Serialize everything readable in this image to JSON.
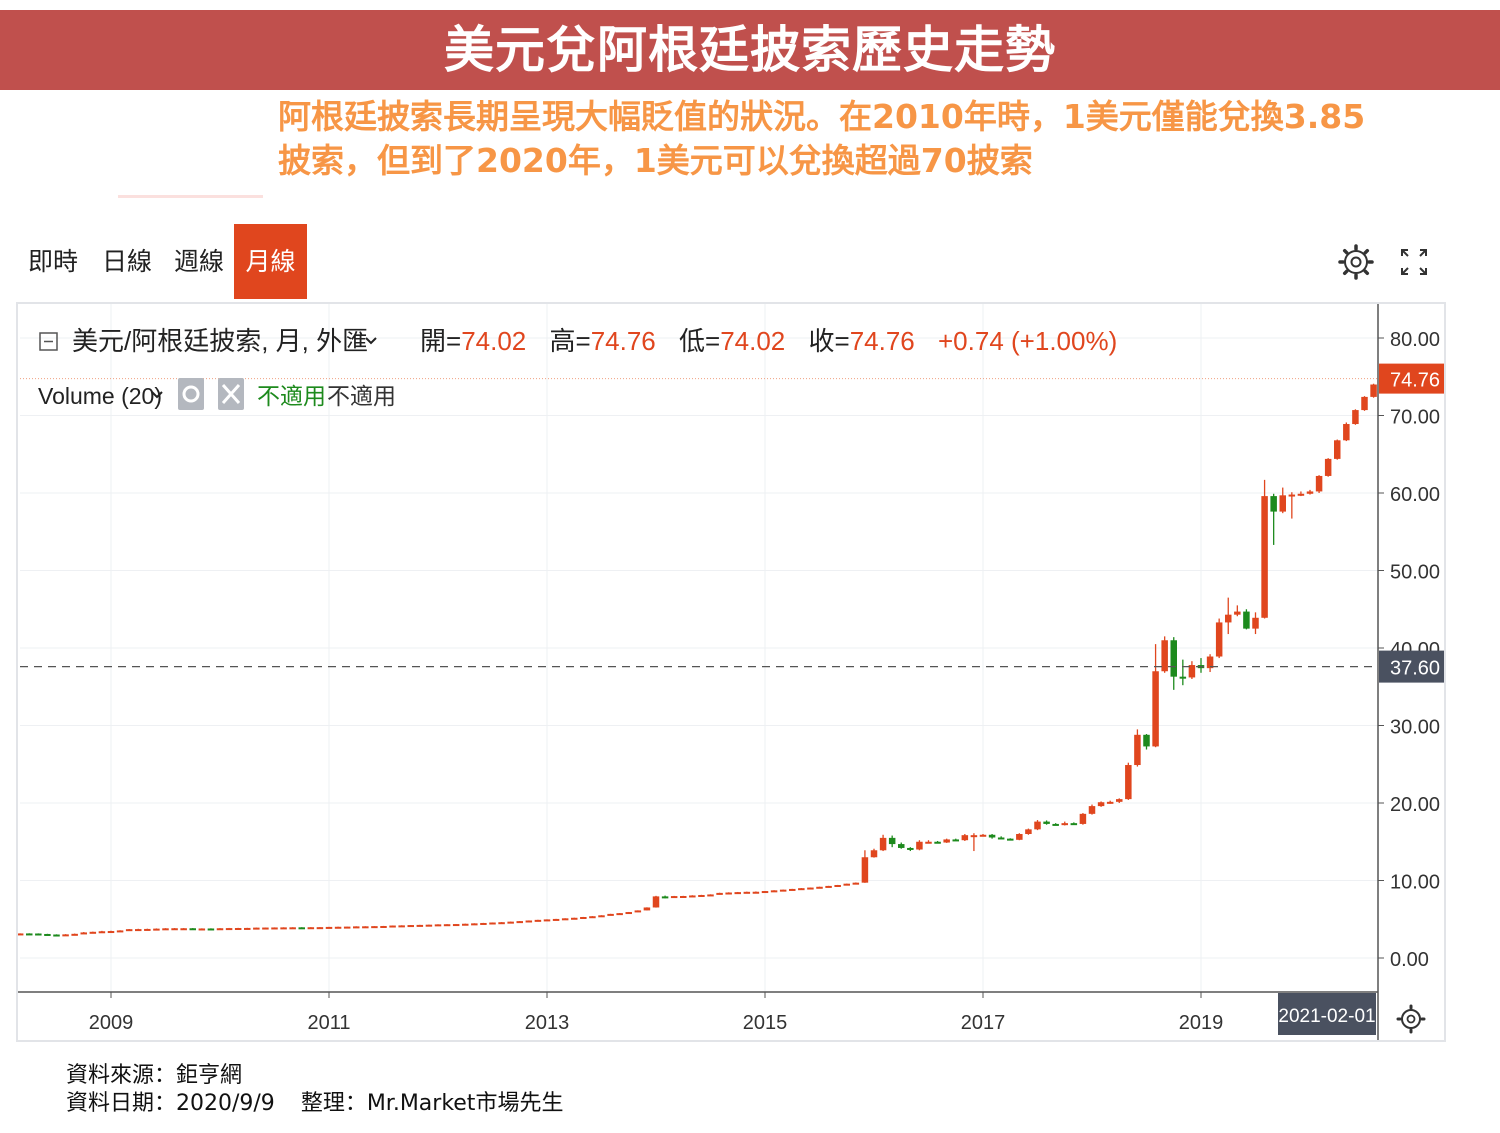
{
  "title": "美元兌阿根廷披索歷史走勢",
  "subtitle": "阿根廷披索長期呈現大幅貶值的狀況。在2010年時，1美元僅能兌換3.85披索，但到了2020年，1美元可以兌換超過70披索",
  "tabs": [
    {
      "label": "即時",
      "active": false
    },
    {
      "label": "日線",
      "active": false
    },
    {
      "label": "週線",
      "active": false
    },
    {
      "label": "月線",
      "active": true
    }
  ],
  "toolbar_icons": [
    "gear-icon",
    "fullscreen-icon"
  ],
  "legend": {
    "symbol": "美元/阿根廷披索, 月, 外匯",
    "open_label": "開=",
    "open": "74.02",
    "high_label": "高=",
    "high": "74.76",
    "low_label": "低=",
    "low": "74.02",
    "close_label": "收=",
    "close": "74.76",
    "change": "+0.74 (+1.00%)"
  },
  "volume": {
    "label": "Volume (20)",
    "na_1": "不適用",
    "na_2": "不適用"
  },
  "price_tags": {
    "last": "74.76",
    "crosshair": "37.60"
  },
  "date_tag": "2021-02-01",
  "colors": {
    "up": "#e0461e",
    "down": "#1d8a1d",
    "title_bg": "#c0504d",
    "subtitle": "#f79646",
    "tab_active": "#e0461e",
    "crosshair_tag": "#4a5160"
  },
  "chart_data": {
    "type": "candlestick",
    "xlabel": "",
    "ylabel": "",
    "x_ticks": [
      "2009",
      "2011",
      "2013",
      "2015",
      "2017",
      "2019"
    ],
    "y_ticks": [
      "0.00",
      "10.00",
      "20.00",
      "30.00",
      "40.00",
      "50.00",
      "60.00",
      "70.00",
      "80.00"
    ],
    "ylim": [
      0,
      80
    ],
    "x_start": "2008-01",
    "x_end": "2020-09",
    "last_price": 74.76,
    "crosshair_price": 37.6,
    "candles": [
      {
        "d": "2008-01",
        "o": 3.15,
        "h": 3.18,
        "l": 3.12,
        "c": 3.14
      },
      {
        "d": "2008-02",
        "o": 3.14,
        "h": 3.17,
        "l": 3.12,
        "c": 3.16
      },
      {
        "d": "2008-03",
        "o": 3.16,
        "h": 3.18,
        "l": 3.14,
        "c": 3.17
      },
      {
        "d": "2008-04",
        "o": 3.17,
        "h": 3.19,
        "l": 3.14,
        "c": 3.16
      },
      {
        "d": "2008-05",
        "o": 3.16,
        "h": 3.18,
        "l": 3.05,
        "c": 3.1
      },
      {
        "d": "2008-06",
        "o": 3.1,
        "h": 3.12,
        "l": 3.01,
        "c": 3.03
      },
      {
        "d": "2008-07",
        "o": 3.03,
        "h": 3.06,
        "l": 3.0,
        "c": 3.02
      },
      {
        "d": "2008-08",
        "o": 3.02,
        "h": 3.08,
        "l": 3.0,
        "c": 3.05
      },
      {
        "d": "2008-09",
        "o": 3.05,
        "h": 3.15,
        "l": 3.03,
        "c": 3.12
      },
      {
        "d": "2008-10",
        "o": 3.12,
        "h": 3.35,
        "l": 3.1,
        "c": 3.3
      },
      {
        "d": "2008-11",
        "o": 3.3,
        "h": 3.4,
        "l": 3.28,
        "c": 3.38
      },
      {
        "d": "2008-12",
        "o": 3.38,
        "h": 3.5,
        "l": 3.36,
        "c": 3.45
      },
      {
        "d": "2009-01",
        "o": 3.45,
        "h": 3.52,
        "l": 3.43,
        "c": 3.48
      },
      {
        "d": "2009-02",
        "o": 3.48,
        "h": 3.58,
        "l": 3.46,
        "c": 3.56
      },
      {
        "d": "2009-03",
        "o": 3.56,
        "h": 3.74,
        "l": 3.54,
        "c": 3.72
      },
      {
        "d": "2009-04",
        "o": 3.72,
        "h": 3.77,
        "l": 3.68,
        "c": 3.73
      },
      {
        "d": "2009-05",
        "o": 3.73,
        "h": 3.78,
        "l": 3.7,
        "c": 3.75
      },
      {
        "d": "2009-06",
        "o": 3.75,
        "h": 3.82,
        "l": 3.73,
        "c": 3.79
      },
      {
        "d": "2009-07",
        "o": 3.79,
        "h": 3.85,
        "l": 3.78,
        "c": 3.83
      },
      {
        "d": "2009-08",
        "o": 3.83,
        "h": 3.86,
        "l": 3.8,
        "c": 3.84
      },
      {
        "d": "2009-09",
        "o": 3.84,
        "h": 3.86,
        "l": 3.81,
        "c": 3.84
      },
      {
        "d": "2009-10",
        "o": 3.84,
        "h": 3.86,
        "l": 3.78,
        "c": 3.8
      },
      {
        "d": "2009-11",
        "o": 3.8,
        "h": 3.83,
        "l": 3.78,
        "c": 3.81
      },
      {
        "d": "2009-12",
        "o": 3.81,
        "h": 3.83,
        "l": 3.79,
        "c": 3.8
      },
      {
        "d": "2010-01",
        "o": 3.8,
        "h": 3.85,
        "l": 3.79,
        "c": 3.84
      },
      {
        "d": "2010-02",
        "o": 3.84,
        "h": 3.88,
        "l": 3.83,
        "c": 3.86
      },
      {
        "d": "2010-03",
        "o": 3.86,
        "h": 3.89,
        "l": 3.85,
        "c": 3.87
      },
      {
        "d": "2010-04",
        "o": 3.87,
        "h": 3.89,
        "l": 3.86,
        "c": 3.88
      },
      {
        "d": "2010-05",
        "o": 3.88,
        "h": 3.93,
        "l": 3.87,
        "c": 3.92
      },
      {
        "d": "2010-06",
        "o": 3.92,
        "h": 3.94,
        "l": 3.91,
        "c": 3.93
      },
      {
        "d": "2010-07",
        "o": 3.93,
        "h": 3.95,
        "l": 3.92,
        "c": 3.94
      },
      {
        "d": "2010-08",
        "o": 3.94,
        "h": 3.96,
        "l": 3.93,
        "c": 3.95
      },
      {
        "d": "2010-09",
        "o": 3.95,
        "h": 3.97,
        "l": 3.94,
        "c": 3.96
      },
      {
        "d": "2010-10",
        "o": 3.96,
        "h": 3.97,
        "l": 3.93,
        "c": 3.95
      },
      {
        "d": "2010-11",
        "o": 3.95,
        "h": 3.98,
        "l": 3.94,
        "c": 3.97
      },
      {
        "d": "2010-12",
        "o": 3.97,
        "h": 3.99,
        "l": 3.95,
        "c": 3.98
      },
      {
        "d": "2011-01",
        "o": 3.98,
        "h": 4.02,
        "l": 3.97,
        "c": 4.01
      },
      {
        "d": "2011-02",
        "o": 4.01,
        "h": 4.04,
        "l": 4.0,
        "c": 4.03
      },
      {
        "d": "2011-03",
        "o": 4.03,
        "h": 4.06,
        "l": 4.02,
        "c": 4.05
      },
      {
        "d": "2011-04",
        "o": 4.05,
        "h": 4.09,
        "l": 4.04,
        "c": 4.08
      },
      {
        "d": "2011-05",
        "o": 4.08,
        "h": 4.1,
        "l": 4.07,
        "c": 4.09
      },
      {
        "d": "2011-06",
        "o": 4.09,
        "h": 4.12,
        "l": 4.08,
        "c": 4.11
      },
      {
        "d": "2011-07",
        "o": 4.11,
        "h": 4.14,
        "l": 4.1,
        "c": 4.13
      },
      {
        "d": "2011-08",
        "o": 4.13,
        "h": 4.2,
        "l": 4.12,
        "c": 4.19
      },
      {
        "d": "2011-09",
        "o": 4.19,
        "h": 4.22,
        "l": 4.18,
        "c": 4.21
      },
      {
        "d": "2011-10",
        "o": 4.21,
        "h": 4.26,
        "l": 4.2,
        "c": 4.25
      },
      {
        "d": "2011-11",
        "o": 4.25,
        "h": 4.28,
        "l": 4.24,
        "c": 4.27
      },
      {
        "d": "2011-12",
        "o": 4.27,
        "h": 4.31,
        "l": 4.26,
        "c": 4.3
      },
      {
        "d": "2012-01",
        "o": 4.3,
        "h": 4.35,
        "l": 4.29,
        "c": 4.34
      },
      {
        "d": "2012-02",
        "o": 4.34,
        "h": 4.37,
        "l": 4.33,
        "c": 4.36
      },
      {
        "d": "2012-03",
        "o": 4.36,
        "h": 4.39,
        "l": 4.35,
        "c": 4.38
      },
      {
        "d": "2012-04",
        "o": 4.38,
        "h": 4.43,
        "l": 4.37,
        "c": 4.42
      },
      {
        "d": "2012-05",
        "o": 4.42,
        "h": 4.48,
        "l": 4.41,
        "c": 4.47
      },
      {
        "d": "2012-06",
        "o": 4.47,
        "h": 4.53,
        "l": 4.46,
        "c": 4.52
      },
      {
        "d": "2012-07",
        "o": 4.52,
        "h": 4.59,
        "l": 4.51,
        "c": 4.58
      },
      {
        "d": "2012-08",
        "o": 4.58,
        "h": 4.63,
        "l": 4.57,
        "c": 4.62
      },
      {
        "d": "2012-09",
        "o": 4.62,
        "h": 4.7,
        "l": 4.61,
        "c": 4.69
      },
      {
        "d": "2012-10",
        "o": 4.69,
        "h": 4.77,
        "l": 4.68,
        "c": 4.76
      },
      {
        "d": "2012-11",
        "o": 4.76,
        "h": 4.85,
        "l": 4.75,
        "c": 4.84
      },
      {
        "d": "2012-12",
        "o": 4.84,
        "h": 4.93,
        "l": 4.83,
        "c": 4.92
      },
      {
        "d": "2013-01",
        "o": 4.92,
        "h": 4.99,
        "l": 4.91,
        "c": 4.98
      },
      {
        "d": "2013-02",
        "o": 4.98,
        "h": 5.05,
        "l": 4.97,
        "c": 5.04
      },
      {
        "d": "2013-03",
        "o": 5.04,
        "h": 5.13,
        "l": 5.03,
        "c": 5.12
      },
      {
        "d": "2013-04",
        "o": 5.12,
        "h": 5.2,
        "l": 5.11,
        "c": 5.19
      },
      {
        "d": "2013-05",
        "o": 5.19,
        "h": 5.3,
        "l": 5.18,
        "c": 5.29
      },
      {
        "d": "2013-06",
        "o": 5.29,
        "h": 5.4,
        "l": 5.28,
        "c": 5.39
      },
      {
        "d": "2013-07",
        "o": 5.39,
        "h": 5.52,
        "l": 5.38,
        "c": 5.51
      },
      {
        "d": "2013-08",
        "o": 5.51,
        "h": 5.7,
        "l": 5.5,
        "c": 5.69
      },
      {
        "d": "2013-09",
        "o": 5.69,
        "h": 5.8,
        "l": 5.68,
        "c": 5.79
      },
      {
        "d": "2013-10",
        "o": 5.79,
        "h": 5.94,
        "l": 5.78,
        "c": 5.93
      },
      {
        "d": "2013-11",
        "o": 5.93,
        "h": 6.15,
        "l": 5.92,
        "c": 6.14
      },
      {
        "d": "2013-12",
        "o": 6.14,
        "h": 6.54,
        "l": 6.13,
        "c": 6.52
      },
      {
        "d": "2014-01",
        "o": 6.52,
        "h": 8.02,
        "l": 6.5,
        "c": 7.95
      },
      {
        "d": "2014-02",
        "o": 7.95,
        "h": 8.05,
        "l": 7.7,
        "c": 7.88
      },
      {
        "d": "2014-03",
        "o": 7.88,
        "h": 8.01,
        "l": 7.8,
        "c": 7.99
      },
      {
        "d": "2014-04",
        "o": 7.99,
        "h": 8.02,
        "l": 7.85,
        "c": 8.0
      },
      {
        "d": "2014-05",
        "o": 8.0,
        "h": 8.1,
        "l": 7.9,
        "c": 8.07
      },
      {
        "d": "2014-06",
        "o": 8.07,
        "h": 8.15,
        "l": 8.02,
        "c": 8.13
      },
      {
        "d": "2014-07",
        "o": 8.13,
        "h": 8.22,
        "l": 8.1,
        "c": 8.2
      },
      {
        "d": "2014-08",
        "o": 8.2,
        "h": 8.42,
        "l": 8.18,
        "c": 8.4
      },
      {
        "d": "2014-09",
        "o": 8.4,
        "h": 8.48,
        "l": 8.38,
        "c": 8.45
      },
      {
        "d": "2014-10",
        "o": 8.45,
        "h": 8.52,
        "l": 8.43,
        "c": 8.5
      },
      {
        "d": "2014-11",
        "o": 8.5,
        "h": 8.56,
        "l": 8.48,
        "c": 8.54
      },
      {
        "d": "2014-12",
        "o": 8.54,
        "h": 8.59,
        "l": 8.52,
        "c": 8.55
      },
      {
        "d": "2015-01",
        "o": 8.55,
        "h": 8.65,
        "l": 8.54,
        "c": 8.64
      },
      {
        "d": "2015-02",
        "o": 8.64,
        "h": 8.75,
        "l": 8.63,
        "c": 8.73
      },
      {
        "d": "2015-03",
        "o": 8.73,
        "h": 8.83,
        "l": 8.72,
        "c": 8.82
      },
      {
        "d": "2015-04",
        "o": 8.82,
        "h": 8.92,
        "l": 8.81,
        "c": 8.91
      },
      {
        "d": "2015-05",
        "o": 8.91,
        "h": 9.02,
        "l": 8.9,
        "c": 9.01
      },
      {
        "d": "2015-06",
        "o": 9.01,
        "h": 9.1,
        "l": 9.0,
        "c": 9.09
      },
      {
        "d": "2015-07",
        "o": 9.09,
        "h": 9.2,
        "l": 9.08,
        "c": 9.19
      },
      {
        "d": "2015-08",
        "o": 9.19,
        "h": 9.31,
        "l": 9.18,
        "c": 9.3
      },
      {
        "d": "2015-09",
        "o": 9.3,
        "h": 9.43,
        "l": 9.29,
        "c": 9.42
      },
      {
        "d": "2015-10",
        "o": 9.42,
        "h": 9.6,
        "l": 9.41,
        "c": 9.59
      },
      {
        "d": "2015-11",
        "o": 9.59,
        "h": 9.75,
        "l": 9.58,
        "c": 9.72
      },
      {
        "d": "2015-12",
        "o": 9.72,
        "h": 13.9,
        "l": 9.7,
        "c": 13.0
      },
      {
        "d": "2016-01",
        "o": 13.0,
        "h": 14.1,
        "l": 12.95,
        "c": 13.9
      },
      {
        "d": "2016-02",
        "o": 13.9,
        "h": 15.9,
        "l": 13.8,
        "c": 15.5
      },
      {
        "d": "2016-03",
        "o": 15.5,
        "h": 15.8,
        "l": 14.3,
        "c": 14.7
      },
      {
        "d": "2016-04",
        "o": 14.7,
        "h": 14.9,
        "l": 14.1,
        "c": 14.2
      },
      {
        "d": "2016-05",
        "o": 14.2,
        "h": 14.3,
        "l": 13.8,
        "c": 14.0
      },
      {
        "d": "2016-06",
        "o": 14.0,
        "h": 15.2,
        "l": 13.9,
        "c": 15.0
      },
      {
        "d": "2016-07",
        "o": 15.0,
        "h": 15.2,
        "l": 14.9,
        "c": 15.0
      },
      {
        "d": "2016-08",
        "o": 15.0,
        "h": 15.1,
        "l": 14.8,
        "c": 14.9
      },
      {
        "d": "2016-09",
        "o": 14.9,
        "h": 15.4,
        "l": 14.85,
        "c": 15.3
      },
      {
        "d": "2016-10",
        "o": 15.3,
        "h": 15.4,
        "l": 15.1,
        "c": 15.2
      },
      {
        "d": "2016-11",
        "o": 15.2,
        "h": 16.0,
        "l": 15.1,
        "c": 15.85
      },
      {
        "d": "2016-12",
        "o": 15.85,
        "h": 16.1,
        "l": 13.8,
        "c": 15.85
      },
      {
        "d": "2017-01",
        "o": 15.85,
        "h": 16.0,
        "l": 15.7,
        "c": 15.9
      },
      {
        "d": "2017-02",
        "o": 15.9,
        "h": 16.0,
        "l": 15.4,
        "c": 15.55
      },
      {
        "d": "2017-03",
        "o": 15.55,
        "h": 15.7,
        "l": 15.35,
        "c": 15.4
      },
      {
        "d": "2017-04",
        "o": 15.4,
        "h": 15.45,
        "l": 15.2,
        "c": 15.25
      },
      {
        "d": "2017-05",
        "o": 15.25,
        "h": 16.1,
        "l": 15.2,
        "c": 16.0
      },
      {
        "d": "2017-06",
        "o": 16.0,
        "h": 16.7,
        "l": 15.9,
        "c": 16.6
      },
      {
        "d": "2017-07",
        "o": 16.6,
        "h": 17.8,
        "l": 16.5,
        "c": 17.6
      },
      {
        "d": "2017-08",
        "o": 17.6,
        "h": 17.75,
        "l": 17.2,
        "c": 17.3
      },
      {
        "d": "2017-09",
        "o": 17.3,
        "h": 17.4,
        "l": 17.1,
        "c": 17.25
      },
      {
        "d": "2017-10",
        "o": 17.25,
        "h": 17.6,
        "l": 17.1,
        "c": 17.4
      },
      {
        "d": "2017-11",
        "o": 17.4,
        "h": 17.5,
        "l": 17.2,
        "c": 17.3
      },
      {
        "d": "2017-12",
        "o": 17.3,
        "h": 18.7,
        "l": 17.2,
        "c": 18.6
      },
      {
        "d": "2018-01",
        "o": 18.6,
        "h": 19.8,
        "l": 18.5,
        "c": 19.6
      },
      {
        "d": "2018-02",
        "o": 19.6,
        "h": 20.2,
        "l": 19.5,
        "c": 20.1
      },
      {
        "d": "2018-03",
        "o": 20.1,
        "h": 20.3,
        "l": 19.9,
        "c": 20.15
      },
      {
        "d": "2018-04",
        "o": 20.15,
        "h": 20.6,
        "l": 20.0,
        "c": 20.5
      },
      {
        "d": "2018-05",
        "o": 20.5,
        "h": 25.2,
        "l": 20.4,
        "c": 24.9
      },
      {
        "d": "2018-06",
        "o": 24.9,
        "h": 29.5,
        "l": 24.7,
        "c": 28.8
      },
      {
        "d": "2018-07",
        "o": 28.8,
        "h": 28.9,
        "l": 26.9,
        "c": 27.3
      },
      {
        "d": "2018-08",
        "o": 27.3,
        "h": 40.5,
        "l": 27.2,
        "c": 37.0
      },
      {
        "d": "2018-09",
        "o": 37.0,
        "h": 41.5,
        "l": 36.8,
        "c": 41.0
      },
      {
        "d": "2018-10",
        "o": 41.0,
        "h": 41.4,
        "l": 34.6,
        "c": 36.3
      },
      {
        "d": "2018-11",
        "o": 36.3,
        "h": 38.5,
        "l": 35.2,
        "c": 36.2
      },
      {
        "d": "2018-12",
        "o": 36.2,
        "h": 38.3,
        "l": 36.0,
        "c": 37.8
      },
      {
        "d": "2019-01",
        "o": 37.8,
        "h": 38.7,
        "l": 36.8,
        "c": 37.4
      },
      {
        "d": "2019-02",
        "o": 37.4,
        "h": 39.2,
        "l": 36.9,
        "c": 38.9
      },
      {
        "d": "2019-03",
        "o": 38.9,
        "h": 43.8,
        "l": 38.7,
        "c": 43.3
      },
      {
        "d": "2019-04",
        "o": 43.3,
        "h": 46.5,
        "l": 41.8,
        "c": 44.3
      },
      {
        "d": "2019-05",
        "o": 44.3,
        "h": 45.5,
        "l": 44.1,
        "c": 44.7
      },
      {
        "d": "2019-06",
        "o": 44.7,
        "h": 45.0,
        "l": 42.4,
        "c": 42.5
      },
      {
        "d": "2019-07",
        "o": 42.5,
        "h": 44.6,
        "l": 41.8,
        "c": 43.9
      },
      {
        "d": "2019-08",
        "o": 43.9,
        "h": 61.7,
        "l": 43.8,
        "c": 59.6
      },
      {
        "d": "2019-09",
        "o": 59.6,
        "h": 59.9,
        "l": 53.3,
        "c": 57.6
      },
      {
        "d": "2019-10",
        "o": 57.6,
        "h": 60.7,
        "l": 57.4,
        "c": 59.7
      },
      {
        "d": "2019-11",
        "o": 59.7,
        "h": 60.1,
        "l": 56.7,
        "c": 59.8
      },
      {
        "d": "2019-12",
        "o": 59.8,
        "h": 60.2,
        "l": 59.6,
        "c": 59.9
      },
      {
        "d": "2020-01",
        "o": 59.9,
        "h": 60.4,
        "l": 59.8,
        "c": 60.2
      },
      {
        "d": "2020-02",
        "o": 60.2,
        "h": 62.3,
        "l": 60.0,
        "c": 62.2
      },
      {
        "d": "2020-03",
        "o": 62.2,
        "h": 64.5,
        "l": 62.1,
        "c": 64.4
      },
      {
        "d": "2020-04",
        "o": 64.4,
        "h": 66.9,
        "l": 64.3,
        "c": 66.8
      },
      {
        "d": "2020-05",
        "o": 66.8,
        "h": 69.1,
        "l": 66.7,
        "c": 68.9
      },
      {
        "d": "2020-06",
        "o": 68.9,
        "h": 70.8,
        "l": 68.8,
        "c": 70.7
      },
      {
        "d": "2020-07",
        "o": 70.7,
        "h": 72.5,
        "l": 70.6,
        "c": 72.4
      },
      {
        "d": "2020-08",
        "o": 72.4,
        "h": 74.1,
        "l": 72.3,
        "c": 74.0
      },
      {
        "d": "2020-09",
        "o": 74.02,
        "h": 74.76,
        "l": 74.02,
        "c": 74.76
      }
    ]
  },
  "footer": {
    "source": "資料來源：鉅亨網",
    "date": "資料日期：2020/9/9",
    "compiler": "整理：Mr.Market市場先生"
  }
}
